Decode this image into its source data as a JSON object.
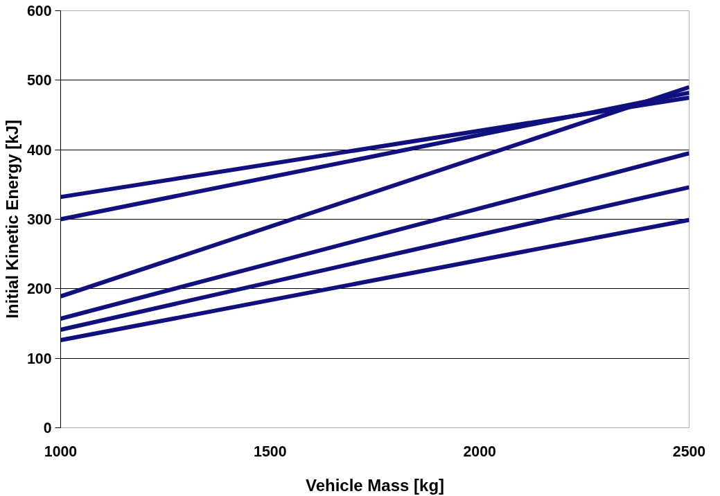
{
  "chart_data": {
    "type": "line",
    "xlabel": "Vehicle Mass [kg]",
    "ylabel": "Initial Kinetic Energy [kJ]",
    "x": [
      1000,
      2500
    ],
    "series": [
      {
        "color": "#10107f",
        "values": [
          332,
          475
        ]
      },
      {
        "color": "#10107f",
        "values": [
          300,
          482
        ]
      },
      {
        "color": "#10107f",
        "values": [
          189,
          490
        ]
      },
      {
        "color": "#10107f",
        "values": [
          157,
          395
        ]
      },
      {
        "color": "#10107f",
        "values": [
          141,
          346
        ]
      },
      {
        "color": "#10107f",
        "values": [
          126,
          299
        ]
      }
    ],
    "xlim": [
      1000,
      2500
    ],
    "xticks": [
      1000,
      1500,
      2000,
      2500
    ],
    "ylim": [
      0,
      600
    ],
    "yticks": [
      0,
      100,
      200,
      300,
      400,
      500,
      600
    ],
    "grid": "y",
    "marker": "none",
    "line_style": "solid"
  }
}
